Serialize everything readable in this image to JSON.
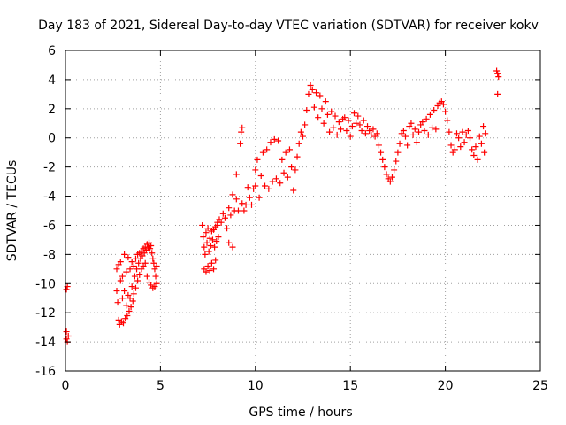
{
  "chart_data": {
    "type": "scatter",
    "title": "Day 183 of 2021, Sidereal Day-to-day VTEC variation (SDTVAR) for receiver kokv",
    "xlabel": "GPS time / hours",
    "ylabel": "SDTVAR / TECUs",
    "xlim": [
      0,
      25
    ],
    "ylim": [
      -16,
      6
    ],
    "xticks": [
      0,
      5,
      10,
      15,
      20,
      25
    ],
    "yticks": [
      -16,
      -14,
      -12,
      -10,
      -8,
      -6,
      -4,
      -2,
      0,
      2,
      4,
      6
    ],
    "grid": true,
    "marker": "+",
    "color": "#ff0000",
    "series": [
      {
        "name": "SDTVAR",
        "points": [
          [
            0.05,
            -10.4
          ],
          [
            0.1,
            -10.2
          ],
          [
            0.05,
            -13.3
          ],
          [
            0.05,
            -13.8
          ],
          [
            0.1,
            -14.0
          ],
          [
            0.15,
            -13.6
          ],
          [
            2.7,
            -9.0
          ],
          [
            2.7,
            -10.5
          ],
          [
            2.75,
            -11.3
          ],
          [
            2.8,
            -8.7
          ],
          [
            2.8,
            -12.5
          ],
          [
            2.85,
            -12.8
          ],
          [
            2.9,
            -9.8
          ],
          [
            2.9,
            -8.5
          ],
          [
            2.95,
            -12.6
          ],
          [
            3.0,
            -9.5
          ],
          [
            3.0,
            -11.0
          ],
          [
            3.05,
            -12.7
          ],
          [
            3.1,
            -8.0
          ],
          [
            3.1,
            -10.5
          ],
          [
            3.15,
            -12.4
          ],
          [
            3.2,
            -9.2
          ],
          [
            3.2,
            -11.5
          ],
          [
            3.25,
            -12.2
          ],
          [
            3.3,
            -8.2
          ],
          [
            3.3,
            -10.8
          ],
          [
            3.35,
            -11.9
          ],
          [
            3.4,
            -9.0
          ],
          [
            3.4,
            -11.0
          ],
          [
            3.45,
            -11.6
          ],
          [
            3.5,
            -8.5
          ],
          [
            3.5,
            -10.2
          ],
          [
            3.55,
            -11.2
          ],
          [
            3.6,
            -8.8
          ],
          [
            3.6,
            -10.7
          ],
          [
            3.65,
            -9.5
          ],
          [
            3.7,
            -8.3
          ],
          [
            3.7,
            -10.3
          ],
          [
            3.75,
            -9.0
          ],
          [
            3.8,
            -8.0
          ],
          [
            3.8,
            -9.8
          ],
          [
            3.85,
            -8.6
          ],
          [
            3.9,
            -7.9
          ],
          [
            3.9,
            -9.4
          ],
          [
            3.95,
            -8.3
          ],
          [
            4.0,
            -7.8
          ],
          [
            4.0,
            -9.0
          ],
          [
            4.05,
            -8.1
          ],
          [
            4.1,
            -7.6
          ],
          [
            4.1,
            -8.8
          ],
          [
            4.15,
            -7.9
          ],
          [
            4.2,
            -7.5
          ],
          [
            4.2,
            -8.6
          ],
          [
            4.25,
            -7.7
          ],
          [
            4.3,
            -7.3
          ],
          [
            4.3,
            -9.5
          ],
          [
            4.35,
            -7.5
          ],
          [
            4.4,
            -7.2
          ],
          [
            4.4,
            -9.9
          ],
          [
            4.45,
            -7.6
          ],
          [
            4.5,
            -7.4
          ],
          [
            4.5,
            -10.1
          ],
          [
            4.55,
            -7.9
          ],
          [
            4.6,
            -8.3
          ],
          [
            4.6,
            -10.3
          ],
          [
            4.65,
            -8.6
          ],
          [
            4.7,
            -9.0
          ],
          [
            4.7,
            -10.2
          ],
          [
            4.75,
            -9.5
          ],
          [
            4.8,
            -10.0
          ],
          [
            4.8,
            -8.8
          ],
          [
            7.2,
            -6.0
          ],
          [
            7.25,
            -6.8
          ],
          [
            7.3,
            -7.5
          ],
          [
            7.3,
            -9.0
          ],
          [
            7.35,
            -8.0
          ],
          [
            7.4,
            -6.5
          ],
          [
            7.4,
            -9.2
          ],
          [
            7.45,
            -7.2
          ],
          [
            7.5,
            -6.2
          ],
          [
            7.5,
            -8.8
          ],
          [
            7.55,
            -7.8
          ],
          [
            7.6,
            -6.9
          ],
          [
            7.6,
            -9.1
          ],
          [
            7.65,
            -7.4
          ],
          [
            7.7,
            -6.4
          ],
          [
            7.7,
            -8.6
          ],
          [
            7.75,
            -7.0
          ],
          [
            7.8,
            -6.3
          ],
          [
            7.8,
            -9.0
          ],
          [
            7.85,
            -7.5
          ],
          [
            7.9,
            -6.1
          ],
          [
            7.9,
            -8.4
          ],
          [
            7.95,
            -7.1
          ],
          [
            8.0,
            -6.0
          ],
          [
            8.0,
            -5.8
          ],
          [
            8.05,
            -6.8
          ],
          [
            8.1,
            -5.6
          ],
          [
            8.2,
            -5.8
          ],
          [
            8.3,
            -5.2
          ],
          [
            8.4,
            -5.5
          ],
          [
            8.5,
            -6.2
          ],
          [
            8.6,
            -4.8
          ],
          [
            8.6,
            -7.2
          ],
          [
            8.7,
            -5.3
          ],
          [
            8.8,
            -3.9
          ],
          [
            8.8,
            -7.5
          ],
          [
            8.9,
            -5.0
          ],
          [
            9.0,
            -4.2
          ],
          [
            9.0,
            -2.5
          ],
          [
            9.1,
            -5.0
          ],
          [
            9.2,
            -0.4
          ],
          [
            9.25,
            0.4
          ],
          [
            9.3,
            0.7
          ],
          [
            9.3,
            -4.5
          ],
          [
            9.4,
            -5.0
          ],
          [
            9.5,
            -4.6
          ],
          [
            9.6,
            -3.4
          ],
          [
            9.7,
            -4.1
          ],
          [
            9.8,
            -4.6
          ],
          [
            9.9,
            -3.5
          ],
          [
            10.0,
            -3.3
          ],
          [
            10.0,
            -2.2
          ],
          [
            10.1,
            -1.5
          ],
          [
            10.2,
            -4.1
          ],
          [
            10.3,
            -2.6
          ],
          [
            10.4,
            -1.0
          ],
          [
            10.5,
            -3.3
          ],
          [
            10.6,
            -0.8
          ],
          [
            10.7,
            -3.5
          ],
          [
            10.8,
            -0.3
          ],
          [
            10.9,
            -3.0
          ],
          [
            11.0,
            -0.1
          ],
          [
            11.1,
            -2.8
          ],
          [
            11.2,
            -0.2
          ],
          [
            11.3,
            -3.1
          ],
          [
            11.4,
            -1.5
          ],
          [
            11.5,
            -2.4
          ],
          [
            11.6,
            -1.0
          ],
          [
            11.7,
            -2.7
          ],
          [
            11.8,
            -0.8
          ],
          [
            11.9,
            -2.0
          ],
          [
            12.0,
            -3.6
          ],
          [
            12.1,
            -2.2
          ],
          [
            12.2,
            -1.3
          ],
          [
            12.3,
            -0.4
          ],
          [
            12.4,
            0.4
          ],
          [
            12.5,
            0.1
          ],
          [
            12.6,
            0.9
          ],
          [
            12.7,
            1.9
          ],
          [
            12.8,
            3.0
          ],
          [
            12.9,
            3.6
          ],
          [
            13.0,
            3.3
          ],
          [
            13.1,
            2.1
          ],
          [
            13.2,
            3.1
          ],
          [
            13.3,
            1.4
          ],
          [
            13.4,
            2.9
          ],
          [
            13.5,
            2.0
          ],
          [
            13.6,
            1.0
          ],
          [
            13.7,
            2.5
          ],
          [
            13.8,
            1.6
          ],
          [
            13.9,
            0.4
          ],
          [
            14.0,
            1.8
          ],
          [
            14.1,
            0.7
          ],
          [
            14.2,
            1.5
          ],
          [
            14.3,
            0.2
          ],
          [
            14.4,
            1.1
          ],
          [
            14.5,
            0.6
          ],
          [
            14.6,
            1.3
          ],
          [
            14.7,
            1.4
          ],
          [
            14.8,
            0.5
          ],
          [
            14.9,
            1.2
          ],
          [
            15.0,
            0.1
          ],
          [
            15.1,
            0.8
          ],
          [
            15.2,
            1.7
          ],
          [
            15.3,
            1.0
          ],
          [
            15.4,
            1.5
          ],
          [
            15.5,
            0.9
          ],
          [
            15.6,
            0.5
          ],
          [
            15.7,
            1.2
          ],
          [
            15.8,
            0.3
          ],
          [
            15.9,
            0.8
          ],
          [
            16.0,
            0.5
          ],
          [
            16.1,
            0.2
          ],
          [
            16.2,
            0.6
          ],
          [
            16.3,
            0.1
          ],
          [
            16.4,
            0.3
          ],
          [
            16.5,
            -0.5
          ],
          [
            16.6,
            -1.0
          ],
          [
            16.7,
            -1.5
          ],
          [
            16.8,
            -2.0
          ],
          [
            16.9,
            -2.5
          ],
          [
            17.0,
            -2.8
          ],
          [
            17.1,
            -3.0
          ],
          [
            17.2,
            -2.7
          ],
          [
            17.3,
            -2.2
          ],
          [
            17.4,
            -1.6
          ],
          [
            17.5,
            -1.0
          ],
          [
            17.6,
            -0.4
          ],
          [
            17.7,
            0.3
          ],
          [
            17.8,
            0.5
          ],
          [
            17.9,
            0.1
          ],
          [
            18.0,
            -0.5
          ],
          [
            18.1,
            0.8
          ],
          [
            18.2,
            1.0
          ],
          [
            18.3,
            0.2
          ],
          [
            18.4,
            0.6
          ],
          [
            18.5,
            -0.3
          ],
          [
            18.6,
            0.4
          ],
          [
            18.7,
            0.9
          ],
          [
            18.8,
            1.1
          ],
          [
            18.9,
            0.5
          ],
          [
            19.0,
            1.3
          ],
          [
            19.1,
            0.2
          ],
          [
            19.2,
            1.6
          ],
          [
            19.3,
            0.7
          ],
          [
            19.4,
            1.9
          ],
          [
            19.5,
            0.6
          ],
          [
            19.6,
            2.2
          ],
          [
            19.7,
            2.4
          ],
          [
            19.8,
            2.5
          ],
          [
            19.9,
            2.3
          ],
          [
            20.0,
            1.8
          ],
          [
            20.1,
            1.2
          ],
          [
            20.2,
            0.4
          ],
          [
            20.3,
            -0.5
          ],
          [
            20.4,
            -1.0
          ],
          [
            20.5,
            -0.8
          ],
          [
            20.6,
            0.3
          ],
          [
            20.7,
            0.0
          ],
          [
            20.8,
            -0.6
          ],
          [
            20.9,
            0.4
          ],
          [
            21.0,
            -0.3
          ],
          [
            21.1,
            0.2
          ],
          [
            21.2,
            0.5
          ],
          [
            21.3,
            0.0
          ],
          [
            21.4,
            -0.8
          ],
          [
            21.5,
            -1.2
          ],
          [
            21.6,
            -0.6
          ],
          [
            21.7,
            -1.5
          ],
          [
            21.8,
            0.1
          ],
          [
            21.9,
            -0.4
          ],
          [
            22.0,
            0.8
          ],
          [
            22.05,
            -1.0
          ],
          [
            22.1,
            0.3
          ],
          [
            22.7,
            4.6
          ],
          [
            22.75,
            4.4
          ],
          [
            22.8,
            4.2
          ],
          [
            22.75,
            3.0
          ]
        ]
      }
    ]
  }
}
